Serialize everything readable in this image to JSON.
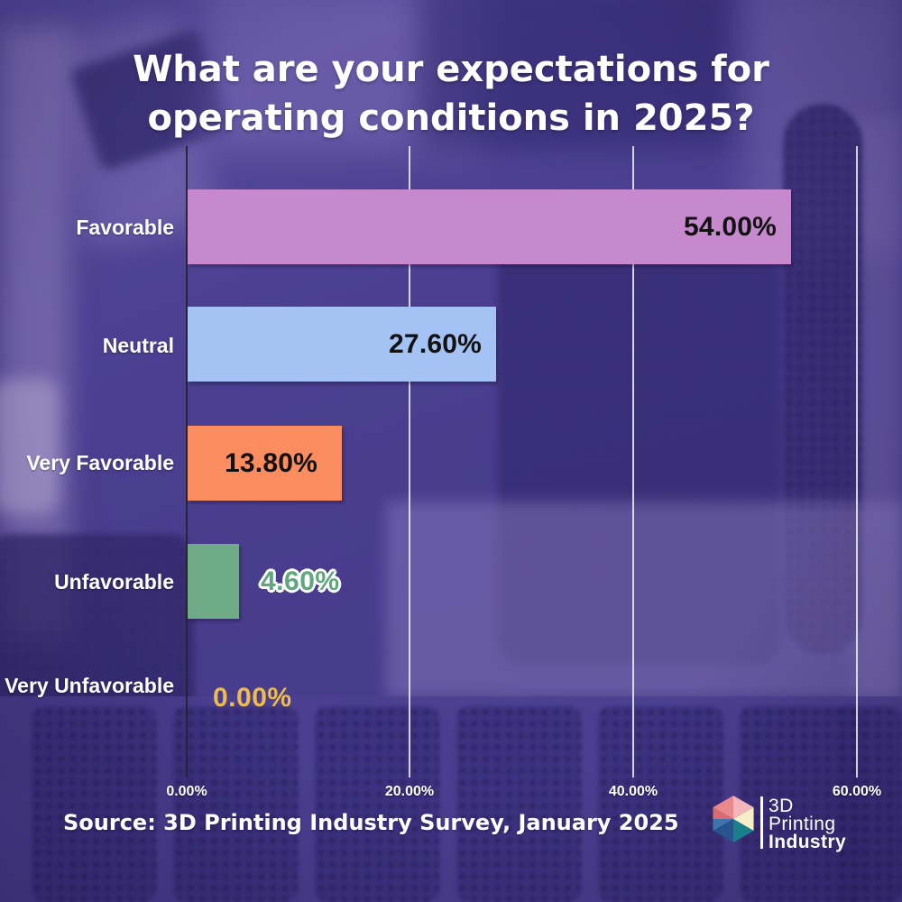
{
  "title": {
    "line1": "What are your expectations for",
    "line2": "operating conditions in 2025?"
  },
  "source": {
    "text": "Source: 3D Printing Industry Survey, January 2025"
  },
  "logo": {
    "line1": "3D",
    "line2": "Printing",
    "line3": "Industry",
    "text_color": "#ffffff",
    "facets": [
      "#e9898c",
      "#f3b6bc",
      "#f6efc6",
      "#17808b",
      "#27548c",
      "#3d74ad",
      "#d76d72"
    ]
  },
  "colors": {
    "background_purple": "#4a3d8e",
    "title_text": "#ffffff",
    "category_text": "#ffffff",
    "tick_text": "#ffffff",
    "value_text_dark": "#121212",
    "value_text_green": "#5fa87f",
    "value_text_gold": "#eebb4d",
    "axis_line": "#24222f",
    "gridline": "#f0eff6"
  },
  "chart_data": {
    "type": "bar",
    "orientation": "horizontal",
    "title": "What are your expectations for operating conditions in 2025?",
    "categories": [
      "Favorable",
      "Neutral",
      "Very Favorable",
      "Unfavorable",
      "Very Unfavorable"
    ],
    "values": [
      54.0,
      27.6,
      13.8,
      4.6,
      0.0
    ],
    "value_labels": [
      "54.00%",
      "27.60%",
      "13.80%",
      "4.60%",
      "0.00%"
    ],
    "bar_colors": [
      "#c689ce",
      "#a4c2f3",
      "#f98d5f",
      "#6fab86",
      "none"
    ],
    "value_label_styles": [
      "dark-inside-right",
      "dark-inside-right",
      "dark-inside-center",
      "green-outside-bar",
      "gold-outside-bar"
    ],
    "xlabel": "",
    "ylabel": "",
    "xlim": [
      0,
      60
    ],
    "x_tick_values": [
      0,
      20,
      40,
      60
    ],
    "x_tick_labels": [
      "0.00%",
      "20.00%",
      "40.00%",
      "60.00%"
    ],
    "legend": "none",
    "grid": "vertical gridlines at each x tick",
    "source": "Source: 3D Printing Industry Survey, January 2025"
  }
}
